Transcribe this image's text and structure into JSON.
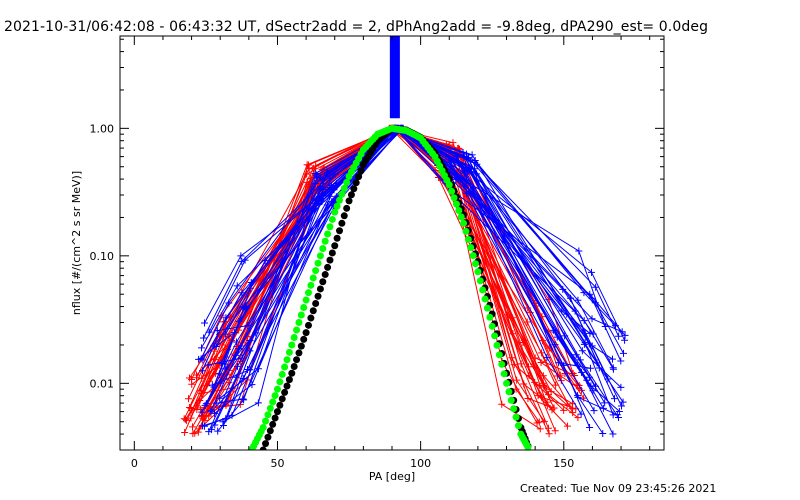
{
  "title": "2021-10-31/06:42:08 - 06:43:32 UT, dSectr2add = 2, dPhAng2add = -9.8deg, dPA290_est=  0.0deg",
  "footer": "Created: Tue Nov 09 23:45:26 2021",
  "colors": {
    "red": "#ff0000",
    "blue": "#0000ff",
    "green": "#00ff00",
    "black": "#000000"
  },
  "chart_data": {
    "type": "line",
    "xlabel": "PA [deg]",
    "ylabel": "nflux [#/(cm^2 s sr MeV)]",
    "xlim": [
      -5,
      185
    ],
    "ylim": [
      0.003,
      5.3
    ],
    "yscale": "log",
    "xticks": [
      0,
      50,
      100,
      150
    ],
    "xtick_labels": [
      "0",
      "50",
      "100",
      "150"
    ],
    "yticks": [
      0.01,
      0.1,
      1.0
    ],
    "ytick_labels": [
      "0.01",
      "0.10",
      "1.00"
    ],
    "marker_bar": {
      "x": 91,
      "x_width": 3.5,
      "y_from": 1.2,
      "y_to": 5.3,
      "color": "#0000ff"
    },
    "series": [
      {
        "color": "#ff0000",
        "marker": "+",
        "left_anchor": [
          17,
          0.0055
        ],
        "mid": [
          64,
          0.4
        ],
        "peak": [
          89,
          1.0
        ],
        "right_mid": [
          110,
          0.6
        ],
        "right_anchor": [
          145,
          0.006
        ],
        "count": 36,
        "spread_low": 0.004,
        "spread_high": 0.012
      },
      {
        "color": "#0000ff",
        "marker": "+",
        "left_anchor": [
          22,
          0.007
        ],
        "mid": [
          67,
          0.35
        ],
        "peak": [
          91,
          1.0
        ],
        "right_mid": [
          115,
          0.5
        ],
        "right_anchor": [
          160,
          0.009
        ],
        "count": 36,
        "spread_low": 0.004,
        "spread_high": 0.03
      }
    ],
    "fit_curves": [
      {
        "name": "",
        "color": "#000000",
        "marker": "dot",
        "x": [
          45,
          50,
          55,
          60,
          65,
          70,
          75,
          80,
          85,
          90,
          95,
          100,
          105,
          110,
          115,
          120,
          125,
          130,
          135,
          138
        ],
        "y": [
          0.003,
          0.006,
          0.012,
          0.025,
          0.055,
          0.12,
          0.27,
          0.52,
          0.8,
          1.0,
          0.97,
          0.85,
          0.64,
          0.4,
          0.21,
          0.09,
          0.035,
          0.012,
          0.0045,
          0.003
        ]
      },
      {
        "name": "",
        "color": "#00ff00",
        "marker": "dot",
        "x": [
          41,
          45,
          50,
          55,
          60,
          65,
          70,
          75,
          80,
          85,
          90,
          95,
          100,
          105,
          110,
          115,
          120,
          125,
          130,
          135,
          138
        ],
        "y": [
          0.003,
          0.0045,
          0.009,
          0.02,
          0.045,
          0.1,
          0.22,
          0.42,
          0.68,
          0.9,
          1.0,
          0.96,
          0.84,
          0.6,
          0.36,
          0.18,
          0.075,
          0.028,
          0.01,
          0.004,
          0.003
        ]
      }
    ]
  }
}
